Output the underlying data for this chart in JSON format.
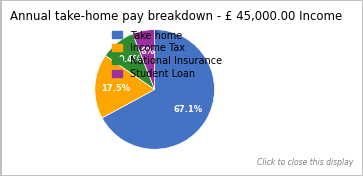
{
  "title": "Annual take-home pay breakdown - £ 45,000.00 Income",
  "slices": [
    67.1,
    17.5,
    9.4,
    6.0
  ],
  "labels": [
    "Take home",
    "Income Tax",
    "National Insurance",
    "Student Loan"
  ],
  "colors": [
    "#4472C4",
    "#FFA500",
    "#2E8B2E",
    "#9B30A0"
  ],
  "autopct_labels": [
    "67.1%",
    "17.5%",
    "9.4%",
    "6%"
  ],
  "legend_labels": [
    "Take home",
    "Income Tax",
    "National Insurance",
    "Student Loan"
  ],
  "startangle": 90,
  "footer": "Click to close this display",
  "background_color": "#FFFFFF",
  "border_color": "#C0C0C0",
  "title_fontsize": 8.5,
  "legend_fontsize": 7,
  "autopct_fontsize": 6,
  "footer_fontsize": 5.5
}
